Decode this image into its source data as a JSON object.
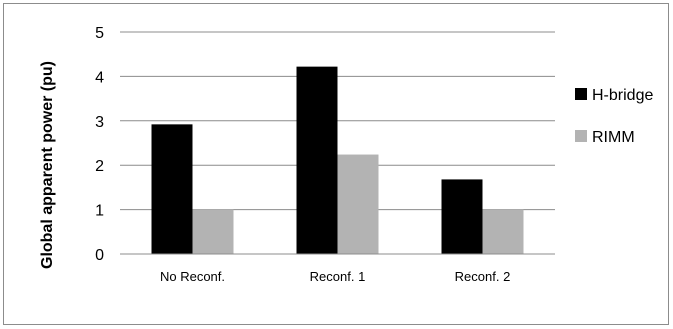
{
  "chart_data": {
    "type": "bar",
    "categories": [
      "No Reconf.",
      "Reconf. 1",
      "Reconf. 2"
    ],
    "series": [
      {
        "name": "H-bridge",
        "values": [
          2.92,
          4.22,
          1.68
        ],
        "color": "#000000"
      },
      {
        "name": "RIMM",
        "values": [
          1.0,
          2.24,
          1.0
        ],
        "color": "#b3b3b3"
      }
    ],
    "ylabel": "Global apparent power (pu)",
    "xlabel": "",
    "ylim": [
      0,
      5
    ],
    "yticks": [
      "0",
      "1",
      "2",
      "3",
      "4",
      "5"
    ],
    "grid": true,
    "legend_position": "right"
  }
}
